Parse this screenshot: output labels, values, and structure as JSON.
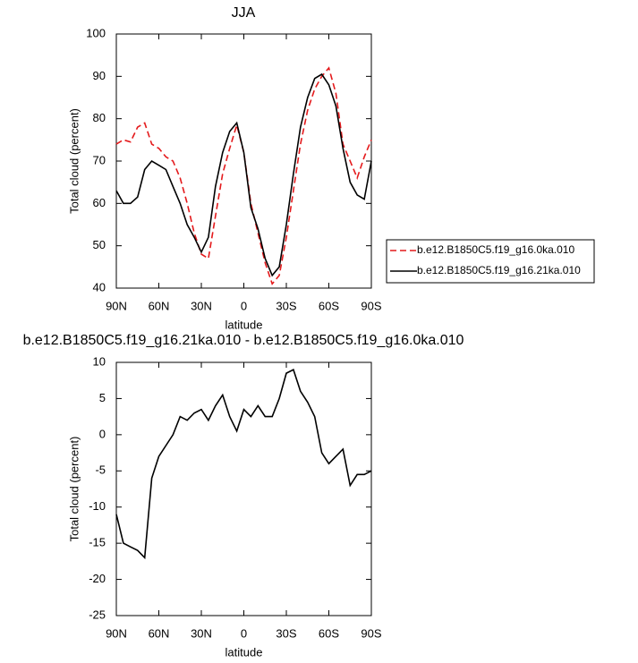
{
  "chart_data": [
    {
      "type": "line",
      "title": "JJA",
      "xlabel": "latitude",
      "ylabel": "Total cloud (percent)",
      "x": [
        90,
        85,
        80,
        75,
        70,
        65,
        60,
        55,
        50,
        45,
        40,
        35,
        30,
        25,
        20,
        15,
        10,
        5,
        0,
        -5,
        -10,
        -15,
        -20,
        -25,
        -30,
        -35,
        -40,
        -45,
        -50,
        -55,
        -60,
        -65,
        -70,
        -75,
        -80,
        -85,
        -90
      ],
      "series": [
        {
          "name": "b.e12.B1850C5.f19_g16.0ka.010",
          "color": "#e41a1c",
          "dash": true,
          "values": [
            74,
            75,
            74.5,
            78,
            79,
            74,
            73,
            71,
            70,
            66,
            60,
            53,
            48,
            47,
            57,
            67,
            73,
            78.5,
            72,
            60,
            53,
            46,
            41,
            43,
            52,
            63,
            74,
            82,
            87,
            90,
            92,
            86,
            74,
            70,
            66,
            71,
            75
          ]
        },
        {
          "name": "b.e12.B1850C5.f19_g16.21ka.010",
          "color": "#000000",
          "dash": false,
          "values": [
            63,
            60,
            60,
            61.5,
            68,
            70,
            69,
            68,
            64,
            60,
            55,
            52,
            48.5,
            52,
            64,
            72,
            77,
            79,
            72,
            59,
            54,
            47,
            43,
            45,
            55,
            67,
            78,
            85,
            89.5,
            90.5,
            88,
            83,
            73,
            65,
            62,
            61,
            70
          ]
        }
      ],
      "xlim": [
        90,
        -90
      ],
      "xticks": [
        {
          "value": 90,
          "label": "90N"
        },
        {
          "value": 60,
          "label": "60N"
        },
        {
          "value": 30,
          "label": "30N"
        },
        0,
        {
          "value": -30,
          "label": "30S"
        },
        {
          "value": -60,
          "label": "60S"
        },
        {
          "value": -90,
          "label": "90S"
        }
      ],
      "ylim": [
        40,
        100
      ],
      "yticks": [
        40,
        50,
        60,
        70,
        80,
        90,
        100
      ],
      "legend": "right"
    },
    {
      "type": "line",
      "title": "b.e12.B1850C5.f19_g16.21ka.010 - b.e12.B1850C5.f19_g16.0ka.010",
      "xlabel": "latitude",
      "ylabel": "Total cloud (percent)",
      "x": [
        90,
        85,
        80,
        75,
        70,
        65,
        60,
        55,
        50,
        45,
        40,
        35,
        30,
        25,
        20,
        15,
        10,
        5,
        0,
        -5,
        -10,
        -15,
        -20,
        -25,
        -30,
        -35,
        -40,
        -45,
        -50,
        -55,
        -60,
        -65,
        -70,
        -75,
        -80,
        -85,
        -90
      ],
      "series": [
        {
          "color": "#000000",
          "dash": false,
          "values": [
            -11,
            -15,
            -15.5,
            -16,
            -17,
            -6,
            -3,
            -1.5,
            0,
            2.5,
            2,
            3,
            3.5,
            2,
            4,
            5.5,
            2.5,
            0.5,
            3.5,
            2.5,
            4,
            2.5,
            2.5,
            5,
            8.5,
            9,
            6,
            4.5,
            2.5,
            -2.5,
            -4,
            -3,
            -2,
            -7,
            -5.5,
            -5.5,
            -5
          ]
        }
      ],
      "xlim": [
        90,
        -90
      ],
      "xticks": [
        {
          "value": 90,
          "label": "90N"
        },
        {
          "value": 60,
          "label": "60N"
        },
        {
          "value": 30,
          "label": "30N"
        },
        0,
        {
          "value": -30,
          "label": "30S"
        },
        {
          "value": -60,
          "label": "60S"
        },
        {
          "value": -90,
          "label": "90S"
        }
      ],
      "ylim": [
        -25,
        10
      ],
      "yticks": [
        -25,
        -20,
        -15,
        -10,
        -5,
        0,
        5,
        10
      ]
    }
  ]
}
